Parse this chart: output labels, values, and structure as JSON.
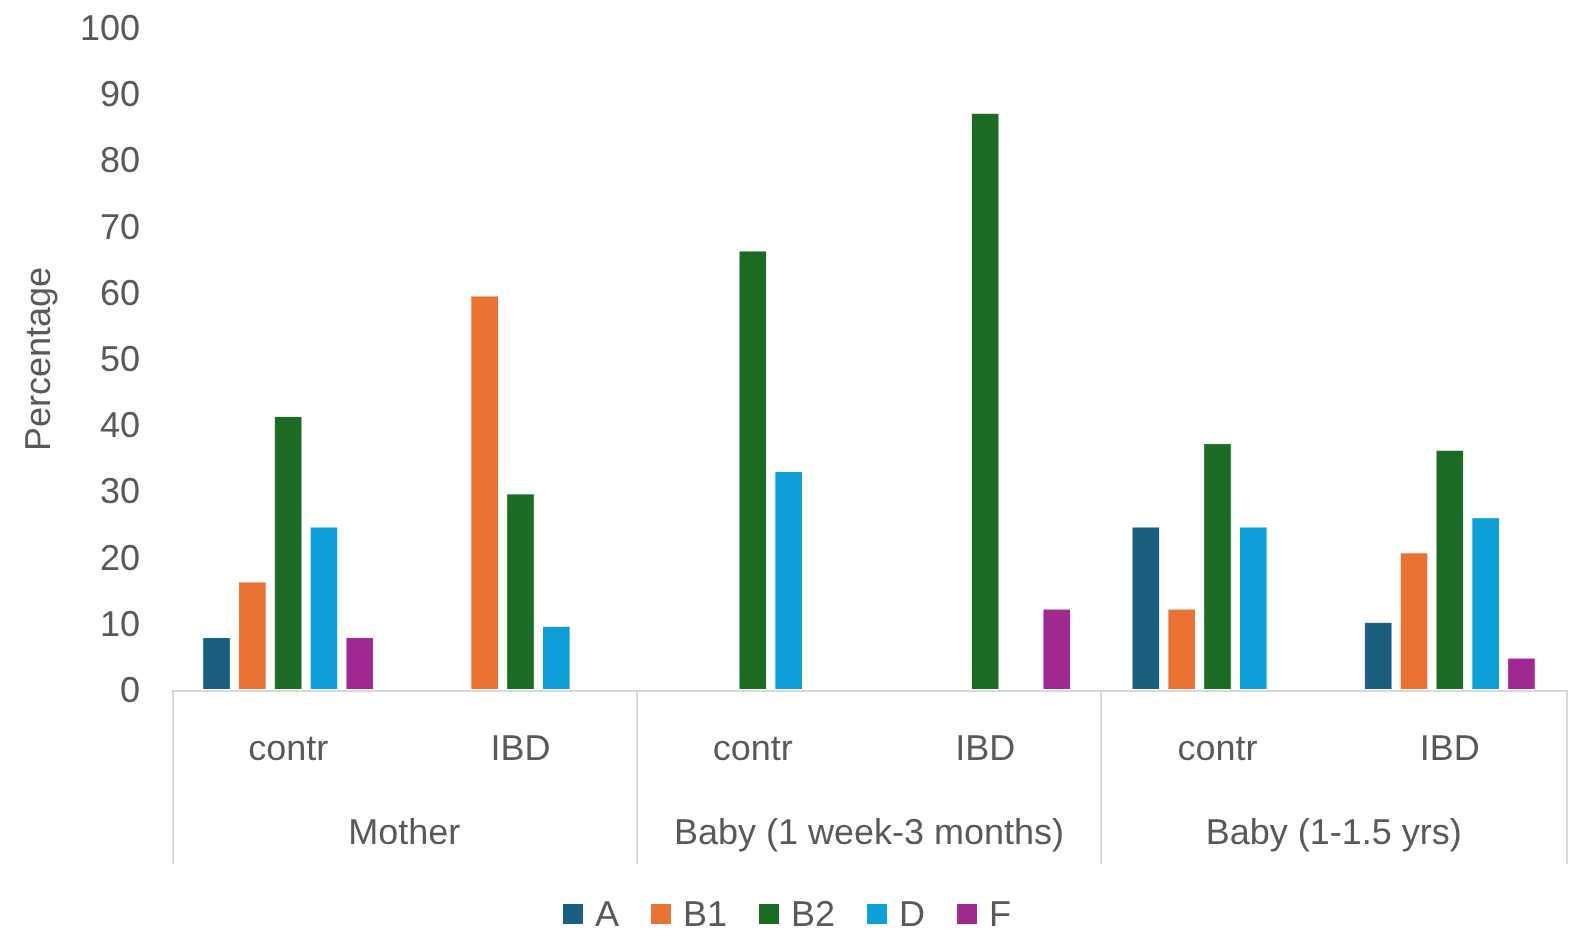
{
  "chart_data": {
    "type": "bar",
    "ylabel": "Percentage",
    "categories": [
      "contr",
      "IBD",
      "contr",
      "IBD",
      "contr",
      "IBD"
    ],
    "annotations": [
      "Mother",
      "Baby (1 week-3 months)",
      "Baby (1-1.5 yrs)"
    ],
    "series": [
      {
        "name": "A",
        "color": "#1a5f80",
        "values": [
          8.0,
          null,
          null,
          null,
          24.7,
          10.3
        ]
      },
      {
        "name": "B1",
        "color": "#e87333",
        "values": [
          16.4,
          59.6,
          null,
          null,
          12.3,
          20.8
        ]
      },
      {
        "name": "B2",
        "color": "#1b6b24",
        "values": [
          41.4,
          29.7,
          66.4,
          87.2,
          37.3,
          36.3
        ]
      },
      {
        "name": "D",
        "color": "#0f9fd8",
        "values": [
          24.7,
          9.7,
          33.1,
          null,
          24.7,
          26.1
        ]
      },
      {
        "name": "F",
        "color": "#a0298f",
        "values": [
          8.0,
          null,
          null,
          12.3,
          null,
          4.9
        ]
      }
    ],
    "ylim": [
      0,
      100
    ],
    "yticks": [
      0,
      10,
      20,
      30,
      40,
      50,
      60,
      70,
      80,
      90,
      100
    ],
    "grid": false,
    "legend": "bottom"
  }
}
